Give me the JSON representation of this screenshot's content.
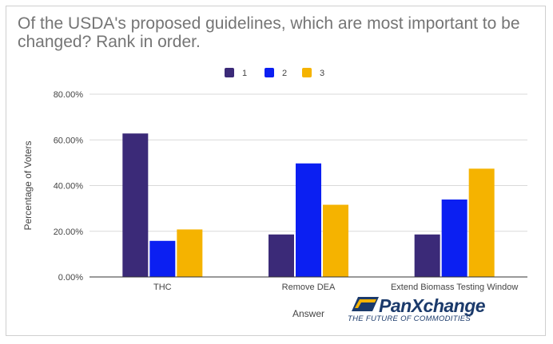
{
  "chart_data": {
    "type": "bar",
    "title": "Of the USDA's proposed guidelines, which are most important to be changed? Rank in order.",
    "xlabel": "Answer",
    "ylabel": "Percentage of Voters",
    "categories": [
      "THC",
      "Remove DEA",
      "Extend Biomass Testing Window"
    ],
    "series": [
      {
        "name": "1",
        "values": [
          62.8,
          18.6,
          18.6
        ],
        "color": "#3b2a78"
      },
      {
        "name": "2",
        "values": [
          15.8,
          49.7,
          33.9
        ],
        "color": "#0b1ff2"
      },
      {
        "name": "3",
        "values": [
          20.8,
          31.6,
          47.4
        ],
        "color": "#f5b300"
      }
    ],
    "ylim": [
      0,
      80
    ],
    "yticks": [
      "0.00%",
      "20.00%",
      "40.00%",
      "60.00%",
      "80.00%"
    ],
    "grid": true,
    "legend": "top-center"
  },
  "logo": {
    "name": "PanXchange",
    "tagline": "THE FUTURE OF COMMODITIES"
  }
}
